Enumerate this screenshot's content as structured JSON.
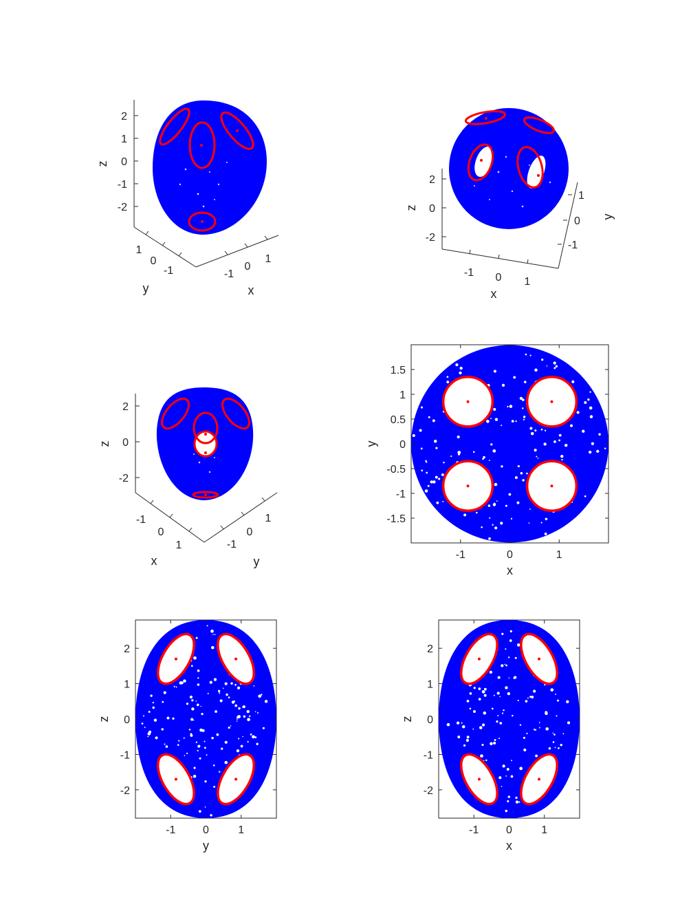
{
  "figure": {
    "background": "#ffffff",
    "fill_color": "#0000ff",
    "orbit_color": "#ff0000"
  },
  "chart_data": [
    {
      "id": "p1",
      "type": "scatter",
      "view": "3d",
      "xlabel": "x",
      "ylabel": "y",
      "zlabel": "z",
      "z_ticks": [
        "2",
        "1",
        "0",
        "-1",
        "-2"
      ],
      "x_ticks": [
        "-1",
        "0",
        "1"
      ],
      "y_ticks": [
        "1",
        "0",
        "-1"
      ],
      "legend": "none"
    },
    {
      "id": "p2",
      "type": "scatter",
      "view": "3d",
      "xlabel": "x",
      "ylabel": "y",
      "zlabel": "z",
      "z_ticks": [
        "2",
        "0",
        "-2"
      ],
      "x_ticks": [
        "-1",
        "0",
        "1"
      ],
      "y_ticks": [
        "1",
        "0",
        "-1"
      ],
      "legend": "none"
    },
    {
      "id": "p3",
      "type": "scatter",
      "view": "3d",
      "xlabel": "x",
      "ylabel": "y",
      "zlabel": "z",
      "z_ticks": [
        "2",
        "0",
        "-2"
      ],
      "x_ticks": [
        "-1",
        "0",
        "1"
      ],
      "y_ticks": [
        "1",
        "0",
        "-1"
      ],
      "legend": "none"
    },
    {
      "id": "p4",
      "type": "scatter",
      "view": "xy",
      "xlabel": "x",
      "ylabel": "y",
      "xlim": [
        -2,
        2
      ],
      "ylim": [
        -2,
        2
      ],
      "x_ticks": [
        -1,
        0,
        1
      ],
      "y_ticks": [
        1.5,
        1,
        0.5,
        0,
        -0.5,
        -1,
        -1.5
      ],
      "region": {
        "type": "disk",
        "radius": 2
      },
      "islands": [
        {
          "cx": -0.85,
          "cy": 0.85,
          "r": 0.5
        },
        {
          "cx": 0.85,
          "cy": 0.85,
          "r": 0.5
        },
        {
          "cx": -0.85,
          "cy": -0.85,
          "r": 0.5
        },
        {
          "cx": 0.85,
          "cy": -0.85,
          "r": 0.5
        }
      ],
      "legend": "none"
    },
    {
      "id": "p5",
      "type": "scatter",
      "view": "yz",
      "xlabel": "y",
      "ylabel": "z",
      "xlim": [
        -2,
        2
      ],
      "ylim": [
        -2.8,
        2.8
      ],
      "x_ticks": [
        -1,
        0,
        1
      ],
      "y_ticks": [
        2,
        1,
        0,
        -1,
        -2
      ],
      "region": {
        "type": "lens",
        "half_width": 2,
        "half_height": 2.8
      },
      "islands": [
        {
          "cx": -0.85,
          "cy": 1.7,
          "rx": 0.38,
          "ry": 0.78,
          "tilt": 30
        },
        {
          "cx": 0.85,
          "cy": 1.7,
          "rx": 0.38,
          "ry": 0.78,
          "tilt": -30
        },
        {
          "cx": -0.85,
          "cy": -1.7,
          "rx": 0.38,
          "ry": 0.78,
          "tilt": -30
        },
        {
          "cx": 0.85,
          "cy": -1.7,
          "rx": 0.38,
          "ry": 0.78,
          "tilt": 30
        }
      ],
      "legend": "none"
    },
    {
      "id": "p6",
      "type": "scatter",
      "view": "xz",
      "xlabel": "x",
      "ylabel": "z",
      "xlim": [
        -2,
        2
      ],
      "ylim": [
        -2.8,
        2.8
      ],
      "x_ticks": [
        -1,
        0,
        1
      ],
      "y_ticks": [
        2,
        1,
        0,
        -1,
        -2
      ],
      "region": {
        "type": "lens",
        "half_width": 2,
        "half_height": 2.8
      },
      "islands": [
        {
          "cx": -0.85,
          "cy": 1.7,
          "rx": 0.38,
          "ry": 0.78,
          "tilt": 30
        },
        {
          "cx": 0.85,
          "cy": 1.7,
          "rx": 0.38,
          "ry": 0.78,
          "tilt": -30
        },
        {
          "cx": -0.85,
          "cy": -1.7,
          "rx": 0.38,
          "ry": 0.78,
          "tilt": -30
        },
        {
          "cx": 0.85,
          "cy": -1.7,
          "rx": 0.38,
          "ry": 0.78,
          "tilt": 30
        }
      ],
      "legend": "none"
    }
  ]
}
